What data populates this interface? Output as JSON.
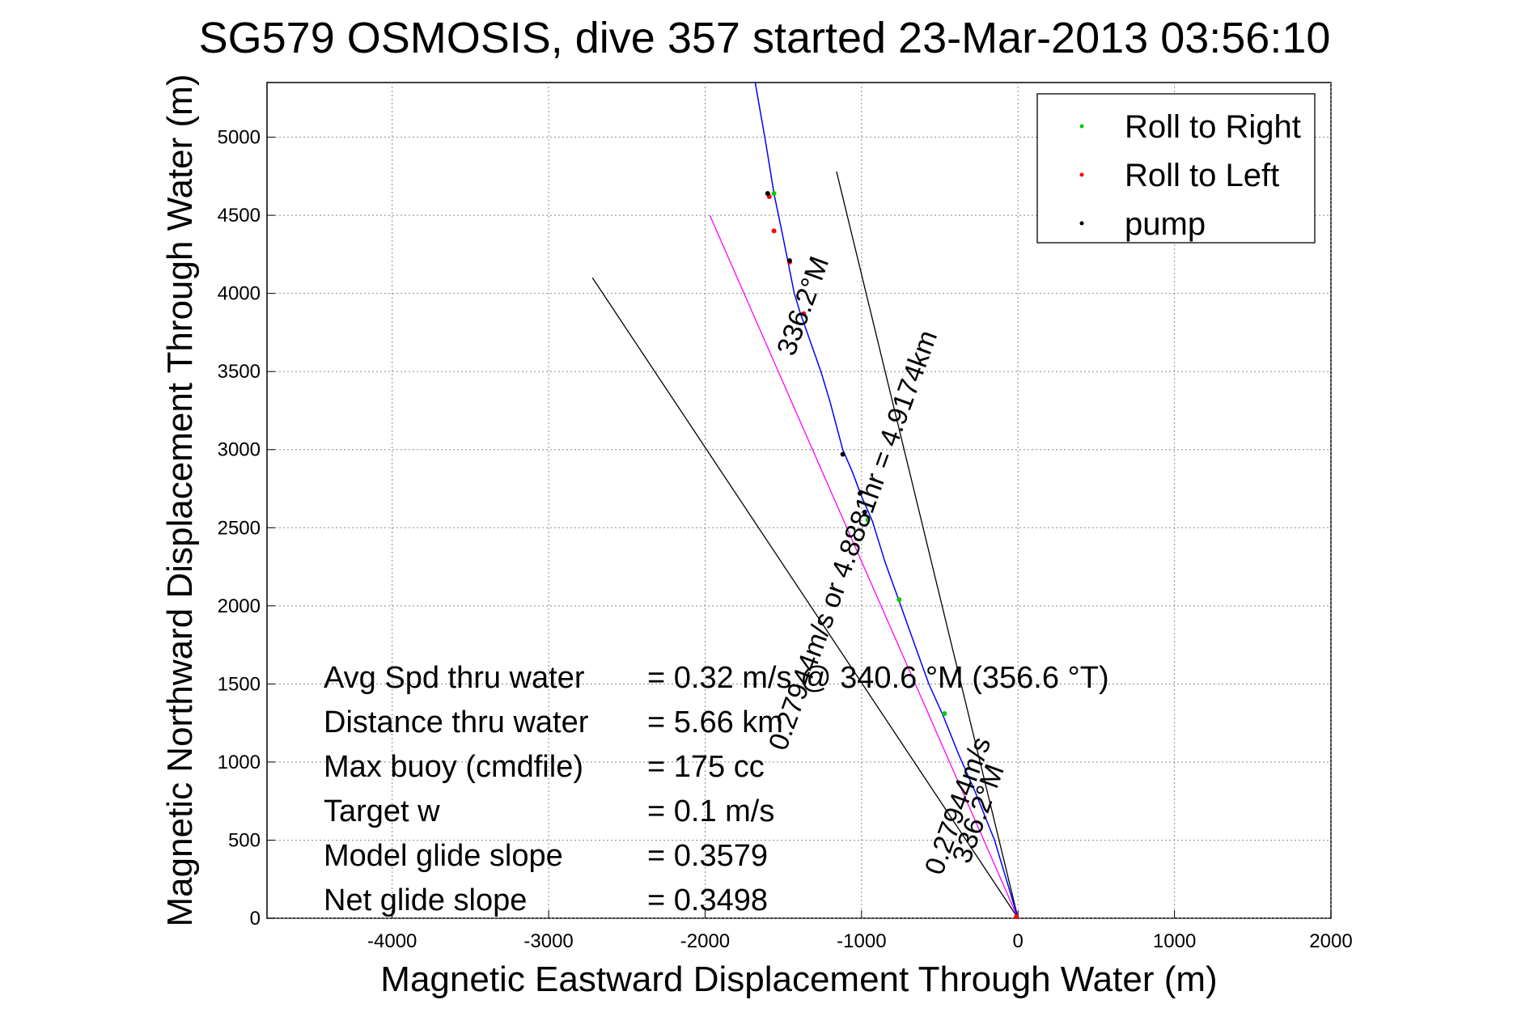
{
  "chart_data": {
    "type": "line",
    "title": "SG579 OSMOSIS, dive 357 started 23-Mar-2013 03:56:10",
    "xlabel": "Magnetic Eastward Displacement Through Water (m)",
    "ylabel": "Magnetic Northward Displacement Through Water (m)",
    "xlim": [
      -4800,
      2000
    ],
    "ylim": [
      0,
      5350
    ],
    "xticks": [
      -4000,
      -3000,
      -2000,
      -1000,
      0,
      1000,
      2000
    ],
    "yticks": [
      0,
      500,
      1000,
      1500,
      2000,
      2500,
      3000,
      3500,
      4000,
      4500,
      5000
    ],
    "grid": true,
    "legend_position": "top-right",
    "legend": [
      {
        "label": "Roll to Right",
        "color": "#00cc00"
      },
      {
        "label": "Roll to Left",
        "color": "#ff0000"
      },
      {
        "label": "pump",
        "color": "#000000"
      }
    ],
    "track": {
      "color": "#0000ff",
      "x": [
        0,
        -60,
        -150,
        -270,
        -380,
        -480,
        -570,
        -660,
        -760,
        -850,
        -930,
        -1000,
        -1060,
        -1120,
        -1160,
        -1200,
        -1260,
        -1330,
        -1390,
        -1430,
        -1470,
        -1510,
        -1560,
        -1610,
        -1680
      ],
      "y": [
        0,
        200,
        500,
        800,
        1050,
        1300,
        1500,
        1750,
        2030,
        2280,
        2540,
        2700,
        2860,
        3000,
        3150,
        3300,
        3500,
        3700,
        3870,
        4000,
        4200,
        4400,
        4640,
        4950,
        5350
      ]
    },
    "roll_right": {
      "x": [
        -470,
        -760,
        -960,
        -1560
      ],
      "y": [
        1310,
        2040,
        2550,
        4640
      ]
    },
    "roll_left": {
      "x": [
        -1370,
        -1460,
        -1560,
        -1590,
        -10
      ],
      "y": [
        3870,
        4200,
        4400,
        4620,
        10
      ]
    },
    "pump": {
      "x": [
        -1120,
        -1010,
        -980,
        -1600,
        -1460
      ],
      "y": [
        2970,
        2720,
        2600,
        4640,
        4210
      ]
    },
    "magenta_line": {
      "color": "#ff00ff",
      "x": [
        0,
        -1970
      ],
      "y": [
        0,
        4500
      ]
    },
    "black_lines": [
      {
        "x": [
          0,
          -2720
        ],
        "y": [
          0,
          4100
        ]
      },
      {
        "x": [
          0,
          -1160
        ],
        "y": [
          0,
          4780
        ]
      }
    ],
    "annotations": [
      {
        "text": "336.2°M",
        "x": -1320,
        "y": 3900,
        "rotation": -70
      },
      {
        "text": "0.27944m/s or 4.8881hr = 4.9174km",
        "x": -1000,
        "y": 2400,
        "rotation": -70
      },
      {
        "text": "0.27944m/s",
        "x": -330,
        "y": 700,
        "rotation": -70
      },
      {
        "text": "336.2°M",
        "x": -200,
        "y": 650,
        "rotation": -70
      }
    ],
    "stats": [
      {
        "label": "Avg Spd thru water",
        "value": "=  0.32 m/s @  340.6 °M (356.6 °T)"
      },
      {
        "label": "Distance thru water",
        "value": "=  5.66 km"
      },
      {
        "label": "Max buoy (cmdfile)",
        "value": "= 175 cc"
      },
      {
        "label": "Target w",
        "value": "= 0.1 m/s"
      },
      {
        "label": "Model glide slope",
        "value": "= 0.3579"
      },
      {
        "label": "Net glide slope",
        "value": "= 0.3498"
      }
    ]
  }
}
